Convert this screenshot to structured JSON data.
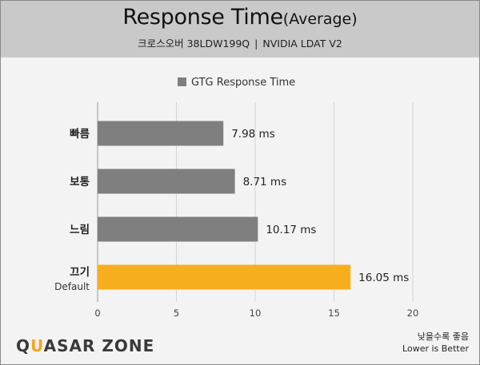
{
  "header": {
    "title_main": "Response Time",
    "title_suffix": "(Average)",
    "monitor": "크로스오버 38LDW199Q",
    "separator": "|",
    "tool": "NVIDIA LDAT V2"
  },
  "chart_data": {
    "type": "bar",
    "orientation": "horizontal",
    "legend": {
      "label": "GTG Response Time",
      "placement": "top-center"
    },
    "categories": [
      "빠름",
      "보통",
      "느림",
      "끄기"
    ],
    "category_sublabels": [
      "",
      "",
      "",
      "Default"
    ],
    "values": [
      7.98,
      8.71,
      10.17,
      16.05
    ],
    "value_labels": [
      "7.98 ms",
      "8.71 ms",
      "10.17 ms",
      "16.05 ms"
    ],
    "series": [
      {
        "name": "GTG Response Time",
        "values": [
          7.98,
          8.71,
          10.17,
          16.05
        ]
      }
    ],
    "xlim": [
      0,
      20
    ],
    "xticks": [
      0,
      5,
      10,
      15,
      20
    ],
    "grid": true,
    "colors": {
      "default": "#7f7f7f",
      "highlight": "#f7ae1e"
    },
    "highlight_index": 3
  },
  "footer": {
    "logo_a": "Q",
    "logo_accent": "U",
    "logo_b": "ASAR ZONE",
    "note_ko": "낮을수록 좋음",
    "note_en": "Lower is Better"
  }
}
